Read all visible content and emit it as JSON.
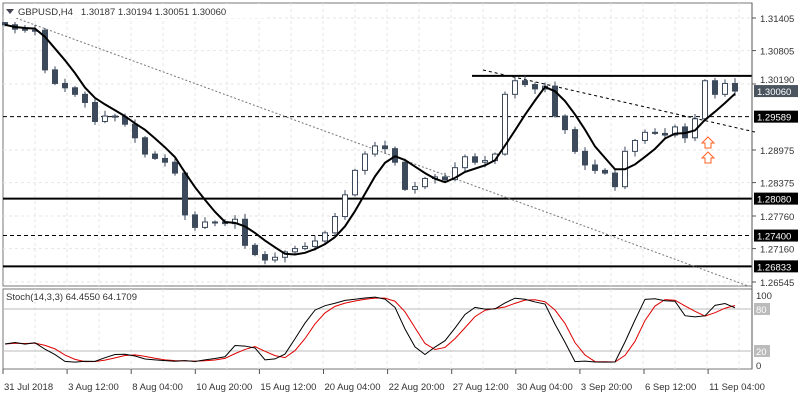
{
  "header": {
    "symbol": "GBPUSD,H4",
    "ohlc": "1.30187 1.30194 1.30051 1.30060"
  },
  "indicator": {
    "label": "Stoch(14,3,3) 64.4550 64.1709",
    "levels": [
      "100",
      "80",
      "20",
      "0"
    ]
  },
  "colors": {
    "candle": "#3c4a5c",
    "ma": "#000000",
    "stoch_main": "#000000",
    "stoch_signal": "#e00000",
    "arrow": "#ff6020",
    "current_price_bg": "#4a5560"
  },
  "chart_data": {
    "type": "candlestick",
    "title": "GBPUSD,H4",
    "x_tick_labels": [
      "31 Jul 2018",
      "3 Aug 12:00",
      "8 Aug 04:00",
      "10 Aug 20:00",
      "15 Aug 12:00",
      "20 Aug 04:00",
      "22 Aug 20:00",
      "27 Aug 12:00",
      "30 Aug 04:00",
      "3 Sep 20:00",
      "6 Sep 12:00",
      "11 Sep 04:00"
    ],
    "y_tick_labels": [
      "1.31405",
      "1.30805",
      "1.30190",
      "1.28975",
      "1.28375",
      "1.27760",
      "1.27160",
      "1.26545"
    ],
    "ylim": [
      1.26545,
      1.31405
    ],
    "current_price": "1.30060",
    "closes": [
      1.3128,
      1.312,
      1.3118,
      1.3118,
      1.3045,
      1.302,
      1.3012,
      1.3,
      1.2985,
      1.295,
      1.296,
      1.2958,
      1.2945,
      1.292,
      1.289,
      1.2882,
      1.2875,
      1.2855,
      1.2778,
      1.2755,
      1.2765,
      1.2765,
      1.2762,
      1.277,
      1.2722,
      1.2705,
      1.2695,
      1.27,
      1.271,
      1.2716,
      1.272,
      1.273,
      1.2745,
      1.2775,
      1.2815,
      1.286,
      1.289,
      1.2905,
      1.29,
      1.2875,
      1.2825,
      1.283,
      1.2845,
      1.2848,
      1.2843,
      1.2865,
      1.2885,
      1.2875,
      1.2878,
      1.289,
      1.3,
      1.3025,
      1.3018,
      1.301,
      1.3015,
      1.296,
      1.2935,
      1.2895,
      1.287,
      1.286,
      1.2855,
      1.283,
      1.2895,
      1.2915,
      1.293,
      1.2928,
      1.2925,
      1.294,
      1.292,
      1.2955,
      1.3025,
      1.3,
      1.302,
      1.3006
    ],
    "horizontal_levels": [
      {
        "label": "1.29589",
        "price": 1.29589,
        "style": "dashed"
      },
      {
        "label": "1.28080",
        "price": 1.2808,
        "style": "solid"
      },
      {
        "label": "1.27400",
        "price": 1.274,
        "style": "dashed"
      },
      {
        "label": "1.26833",
        "price": 1.26833,
        "style": "solid"
      }
    ],
    "resistance_price": 1.3034,
    "grid": true
  }
}
